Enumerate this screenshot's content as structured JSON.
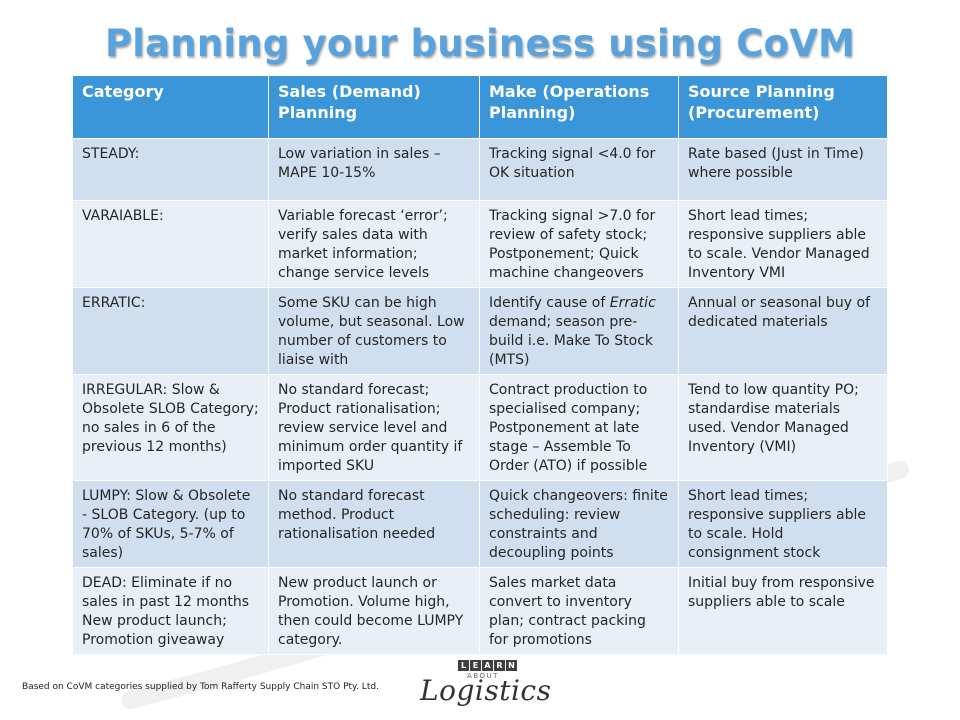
{
  "title": "Planning your business using CoVM",
  "table": {
    "headers": [
      "Category",
      "Sales (Demand) Planning",
      "Make (Operations Planning)",
      "Source Planning (Procurement)"
    ],
    "rows": [
      [
        "STEADY:",
        "Low variation in sales – MAPE 10-15%",
        "Tracking signal <4.0 for OK situation",
        "Rate based (Just in Time) where possible"
      ],
      [
        "VARAIABLE:",
        "Variable forecast ‘error’; verify sales data with market information; change service levels",
        "Tracking signal >7.0 for review of safety stock; Postponement; Quick machine changeovers",
        "Short lead times; responsive suppliers able to scale. Vendor Managed Inventory VMI"
      ],
      [
        "ERRATIC:",
        "Some SKU can be high volume, but seasonal. Low number of customers to liaise with",
        "Identify cause of Erratic demand; season pre-build i.e. Make To Stock (MTS)",
        "Annual or seasonal buy of dedicated materials"
      ],
      [
        "IRREGULAR: Slow & Obsolete SLOB Category; no sales in 6 of the previous 12 months)",
        "No standard forecast; Product rationalisation; review service level and minimum order quantity if imported SKU",
        "Contract production to specialised company; Postponement at late stage – Assemble To Order (ATO) if possible",
        "Tend to low quantity PO; standardise materials used. Vendor Managed Inventory (VMI)"
      ],
      [
        "LUMPY: Slow & Obsolete - SLOB Category. (up to 70% of SKUs, 5-7% of sales)",
        "No standard forecast method. Product rationalisation needed",
        "Quick changeovers: finite scheduling: review constraints and decoupling points",
        "Short lead times; responsive suppliers able to scale. Hold consignment stock"
      ],
      [
        "DEAD: Eliminate if no sales in past 12 months New product launch; Promotion giveaway",
        "New product launch or Promotion. Volume high, then could become LUMPY category.",
        "Sales market data convert to inventory plan; contract packing for promotions",
        "Initial buy from responsive suppliers able to scale"
      ]
    ]
  },
  "footer": "Based on CoVM categories supplied by Tom Rafferty Supply Chain STO Pty. Ltd.",
  "logo": {
    "learn": [
      "L",
      "E",
      "A",
      "R",
      "N"
    ],
    "about": "ABOUT",
    "word": "Logistics"
  },
  "colors": {
    "title": "#5aa2dc",
    "header_bg": "#3a96d8",
    "row_odd": "#cfdff0",
    "row_even": "#e8eff7"
  }
}
